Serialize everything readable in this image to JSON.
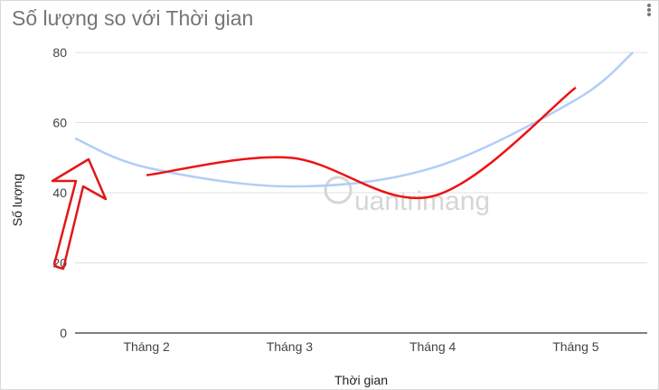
{
  "window": {
    "menu_icon": "kebab-menu-icon"
  },
  "watermark": {
    "text": "uantrimang",
    "icon": "lightbulb-logo-icon"
  },
  "colors": {
    "trendline": "#b3cdf7",
    "series": "#ee1111",
    "annotation": "#e01818",
    "grid": "#e0e0e0"
  },
  "chart_data": {
    "type": "line",
    "title": "Số lượng so với Thời gian",
    "xlabel": "Thời gian",
    "ylabel": "Số lượng",
    "categories": [
      "Tháng 2",
      "Tháng 3",
      "Tháng 4",
      "Tháng 5"
    ],
    "ylim": [
      0,
      80
    ],
    "yticks": [
      "0",
      "20",
      "40",
      "60",
      "80"
    ],
    "grid": true,
    "legend": "none",
    "series": [
      {
        "values": [
          45,
          50,
          39,
          70
        ],
        "curve": "smooth"
      }
    ],
    "trendline": {
      "type": "polynomial",
      "x": [
        0.5,
        1,
        2,
        3,
        4,
        4.4
      ],
      "values": [
        55.5,
        47.2,
        41.8,
        47.1,
        66.5,
        80
      ]
    },
    "annotations": [
      {
        "type": "arrow",
        "target": "y-axis value 40"
      }
    ]
  }
}
